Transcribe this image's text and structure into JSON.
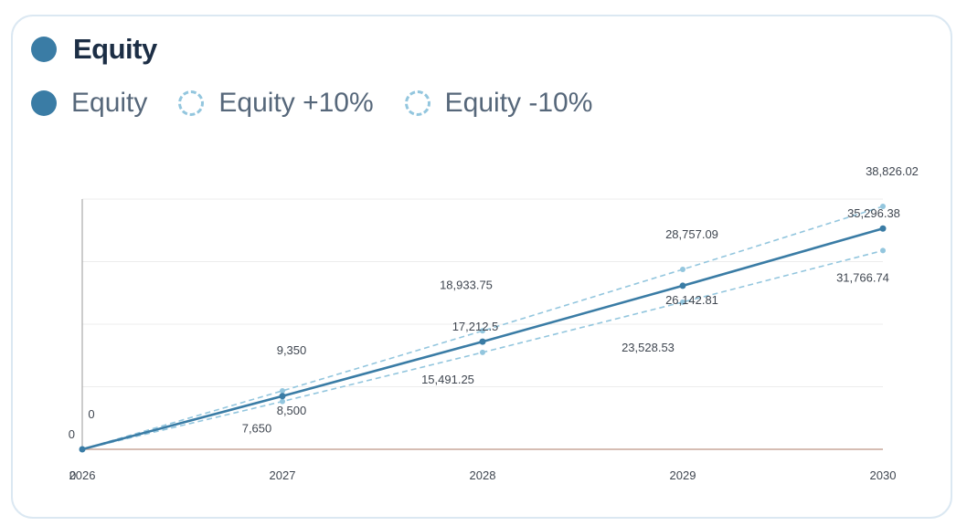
{
  "card": {
    "title": "Equity",
    "title_color": "#3a7ca5"
  },
  "legend": [
    {
      "label": "Equity",
      "style": "solid",
      "color": "#3a7ca5"
    },
    {
      "label": "Equity +10%",
      "style": "dashed",
      "color": "#93c6de"
    },
    {
      "label": "Equity -10%",
      "style": "dashed",
      "color": "#93c6de"
    }
  ],
  "chart_data": {
    "type": "line",
    "x": [
      "2026",
      "2027",
      "2028",
      "2029",
      "2030"
    ],
    "y_axis_label": "0",
    "ylim": [
      0,
      40000
    ],
    "grid": true,
    "legend_position": "top-left",
    "series": [
      {
        "name": "Equity",
        "values": [
          0,
          8500,
          17212.5,
          26142.81,
          35296.38
        ],
        "labels": [
          "0",
          "8,500",
          "17,212.5",
          "26,142.81",
          "35,296.38"
        ],
        "color": "#3a7ca5",
        "style": "solid"
      },
      {
        "name": "Equity +10%",
        "values": [
          0,
          9350,
          18933.75,
          28757.09,
          38826.02
        ],
        "labels": [
          "0",
          "9,350",
          "18,933.75",
          "28,757.09",
          "38,826.02"
        ],
        "color": "#93c6de",
        "style": "dashed"
      },
      {
        "name": "Equity -10%",
        "values": [
          0,
          7650,
          15491.25,
          23528.53,
          31766.74
        ],
        "labels": [
          "",
          "7,650",
          "15,491.25",
          "23,528.53",
          "31,766.74"
        ],
        "color": "#93c6de",
        "style": "dashed"
      }
    ],
    "baseline_color": "#c9a79a"
  }
}
